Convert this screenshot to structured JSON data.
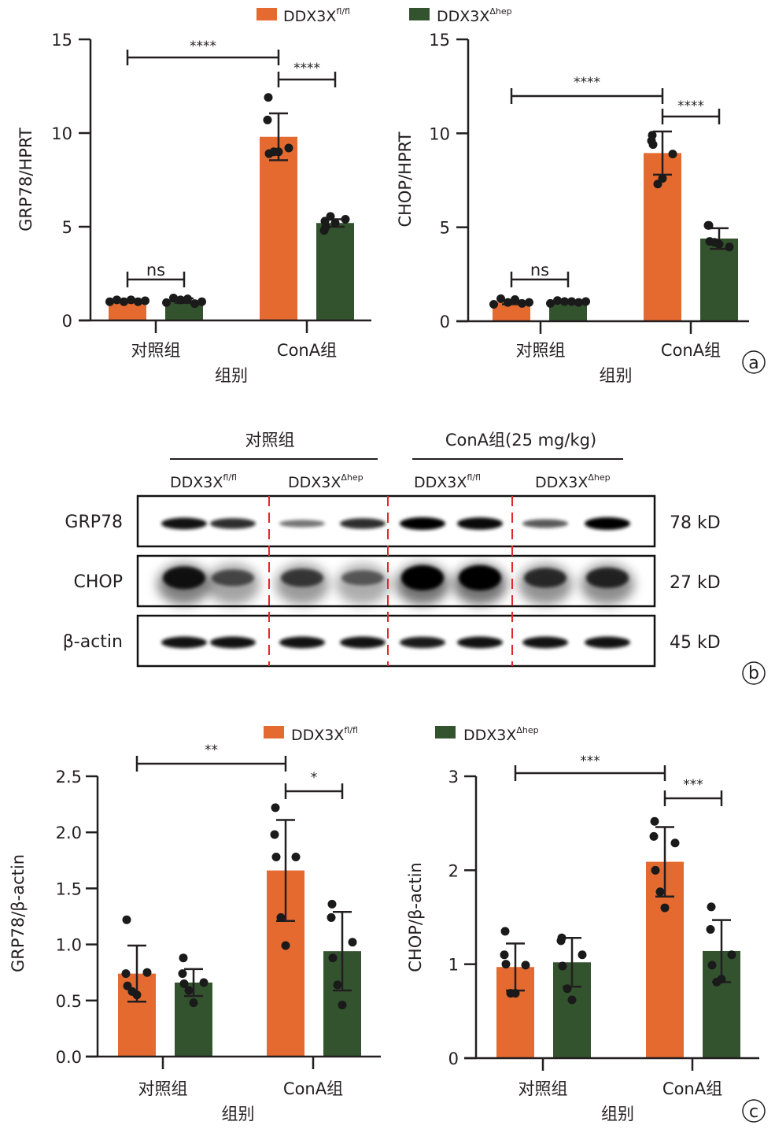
{
  "colors": {
    "fl": "#e56a30",
    "hep": "#33532e",
    "ink": "#231f20",
    "divider": "#e0282e"
  },
  "legend": {
    "fl": {
      "base": "DDX3X",
      "sup": "fl/fl"
    },
    "hep": {
      "base": "DDX3X",
      "sup": "Δhep"
    }
  },
  "panel_labels": {
    "a": "a",
    "b": "b",
    "c": "c"
  },
  "chart_data": [
    {
      "id": "grp78-hprt",
      "type": "bar",
      "title": "",
      "xlabel": "组别",
      "ylabel": "GRP78/HPRT",
      "ylim": [
        0,
        15
      ],
      "yticks": [
        0,
        5,
        10,
        15
      ],
      "ytick_labels": [
        "0",
        "5",
        "10",
        "15"
      ],
      "categories": [
        "对照组",
        "ConA组"
      ],
      "legend_placement": "top",
      "series": [
        {
          "name": "DDX3X fl/fl",
          "key": "fl",
          "values": [
            1.05,
            9.8
          ],
          "sd": [
            0.08,
            1.25
          ],
          "points": [
            [
              1.0,
              1.1,
              1.0,
              1.1,
              1.0,
              1.05
            ],
            [
              11.9,
              10.7,
              9.2,
              8.9,
              9.0,
              9.0
            ]
          ]
        },
        {
          "name": "DDX3X Δhep",
          "key": "hep",
          "values": [
            1.05,
            5.2
          ],
          "sd": [
            0.12,
            0.2
          ],
          "points": [
            [
              0.95,
              1.2,
              1.1,
              1.15,
              0.9,
              1.0
            ],
            [
              5.3,
              4.8,
              5.4,
              5.0,
              5.55,
              5.2
            ]
          ]
        }
      ],
      "comparisons": [
        {
          "from": [
            0,
            0
          ],
          "to": [
            0,
            1
          ],
          "label": "ns"
        },
        {
          "from": [
            0,
            0
          ],
          "to": [
            1,
            0
          ],
          "label": "****"
        },
        {
          "from": [
            1,
            0
          ],
          "to": [
            1,
            1
          ],
          "label": "****"
        }
      ]
    },
    {
      "id": "chop-hprt",
      "type": "bar",
      "title": "",
      "xlabel": "组别",
      "ylabel": "CHOP/HPRT",
      "ylim": [
        0,
        15
      ],
      "yticks": [
        0,
        5,
        10,
        15
      ],
      "ytick_labels": [
        "0",
        "5",
        "10",
        "15"
      ],
      "categories": [
        "对照组",
        "ConA组"
      ],
      "legend_placement": "top",
      "series": [
        {
          "name": "DDX3X fl/fl",
          "key": "fl",
          "values": [
            1.0,
            8.95
          ],
          "sd": [
            0.1,
            1.15
          ],
          "points": [
            [
              0.9,
              1.2,
              1.0,
              1.15,
              0.95,
              1.0
            ],
            [
              9.9,
              9.6,
              8.9,
              9.4,
              7.3,
              7.6
            ]
          ]
        },
        {
          "name": "DDX3X Δhep",
          "key": "hep",
          "values": [
            1.05,
            4.4
          ],
          "sd": [
            0.05,
            0.55
          ],
          "points": [
            [
              0.95,
              1.1,
              1.05,
              1.05,
              1.0,
              1.05
            ],
            [
              5.1,
              5.1,
              3.95,
              4.25,
              4.2,
              4.1
            ]
          ]
        }
      ],
      "comparisons": [
        {
          "from": [
            0,
            0
          ],
          "to": [
            0,
            1
          ],
          "label": "ns"
        },
        {
          "from": [
            0,
            0
          ],
          "to": [
            1,
            0
          ],
          "label": "****"
        },
        {
          "from": [
            1,
            0
          ],
          "to": [
            1,
            1
          ],
          "label": "****"
        }
      ]
    },
    {
      "id": "grp78-actin",
      "type": "bar",
      "title": "",
      "xlabel": "组别",
      "ylabel": "GRP78/β-actin",
      "ylim": [
        0,
        2.5
      ],
      "yticks": [
        0,
        0.5,
        1.0,
        1.5,
        2.0,
        2.5
      ],
      "ytick_labels": [
        "0.0",
        "0.5",
        "1.0",
        "1.5",
        "2.0",
        "2.5"
      ],
      "categories": [
        "对照组",
        "ConA组"
      ],
      "legend_placement": "top",
      "series": [
        {
          "name": "DDX3X fl/fl",
          "key": "fl",
          "values": [
            0.74,
            1.66
          ],
          "sd": [
            0.25,
            0.45
          ],
          "points": [
            [
              1.22,
              0.74,
              0.75,
              0.63,
              0.58,
              0.55
            ],
            [
              2.22,
              1.98,
              1.78,
              1.78,
              1.24,
              0.99
            ]
          ]
        },
        {
          "name": "DDX3X Δhep",
          "key": "hep",
          "values": [
            0.66,
            0.94
          ],
          "sd": [
            0.12,
            0.35
          ],
          "points": [
            [
              0.88,
              0.74,
              0.66,
              0.65,
              0.59,
              0.48
            ],
            [
              1.36,
              1.24,
              1.02,
              0.88,
              0.64,
              0.46
            ]
          ]
        }
      ],
      "comparisons": [
        {
          "from": [
            0,
            0
          ],
          "to": [
            1,
            0
          ],
          "label": "**"
        },
        {
          "from": [
            1,
            0
          ],
          "to": [
            1,
            1
          ],
          "label": "*"
        }
      ]
    },
    {
      "id": "chop-actin",
      "type": "bar",
      "title": "",
      "xlabel": "组别",
      "ylabel": "CHOP/β-actin",
      "ylim": [
        0,
        3
      ],
      "yticks": [
        0,
        1,
        2,
        3
      ],
      "ytick_labels": [
        "0",
        "1",
        "2",
        "3"
      ],
      "categories": [
        "对照组",
        "ConA组"
      ],
      "legend_placement": "top",
      "series": [
        {
          "name": "DDX3X fl/fl",
          "key": "fl",
          "values": [
            0.97,
            2.09
          ],
          "sd": [
            0.25,
            0.37
          ],
          "points": [
            [
              1.35,
              1.1,
              0.99,
              1.0,
              0.69,
              0.69
            ],
            [
              2.52,
              2.36,
              2.29,
              2.0,
              1.77,
              1.6
            ]
          ]
        },
        {
          "name": "DDX3X Δhep",
          "key": "hep",
          "values": [
            1.02,
            1.14
          ],
          "sd": [
            0.26,
            0.33
          ],
          "points": [
            [
              1.28,
              1.25,
              1.1,
              0.98,
              0.74,
              0.62
            ],
            [
              1.61,
              1.37,
              1.1,
              0.99,
              0.81,
              0.84
            ]
          ]
        }
      ],
      "comparisons": [
        {
          "from": [
            0,
            0
          ],
          "to": [
            1,
            0
          ],
          "label": "***"
        },
        {
          "from": [
            1,
            0
          ],
          "to": [
            1,
            1
          ],
          "label": "***"
        }
      ]
    }
  ],
  "western_blot": {
    "group_headers": [
      "对照组",
      "ConA组(25 mg/kg)"
    ],
    "lane_labels": [
      {
        "base": "DDX3X",
        "sup": "fl/fl"
      },
      {
        "base": "DDX3X",
        "sup": "Δhep"
      },
      {
        "base": "DDX3X",
        "sup": "fl/fl"
      },
      {
        "base": "DDX3X",
        "sup": "Δhep"
      }
    ],
    "rows": [
      {
        "protein": "GRP78",
        "size": "78 kD",
        "intensity": [
          0.9,
          0.75,
          0.35,
          0.75,
          1.0,
          0.95,
          0.5,
          1.0
        ]
      },
      {
        "protein": "CHOP",
        "size": "27 kD",
        "intensity": [
          0.85,
          0.45,
          0.55,
          0.35,
          1.0,
          1.0,
          0.65,
          0.7
        ]
      },
      {
        "protein": "β-actin",
        "size": "45 kD",
        "intensity": [
          0.9,
          0.9,
          0.9,
          0.9,
          0.85,
          0.9,
          0.9,
          0.9
        ]
      }
    ]
  }
}
